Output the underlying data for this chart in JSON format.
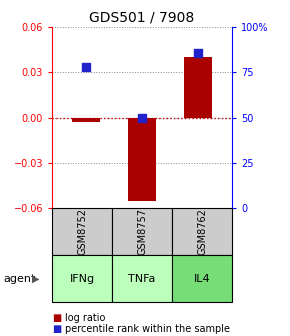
{
  "title": "GDS501 / 7908",
  "samples": [
    "GSM8752",
    "GSM8757",
    "GSM8762"
  ],
  "agents": [
    "IFNg",
    "TNFa",
    "IL4"
  ],
  "log_ratios": [
    -0.003,
    -0.055,
    0.04
  ],
  "percentile_ranks": [
    0.78,
    0.5,
    0.855
  ],
  "ylim_left": [
    -0.06,
    0.06
  ],
  "yticks_left": [
    -0.06,
    -0.03,
    0,
    0.03,
    0.06
  ],
  "ytick_labels_right": [
    "0",
    "25",
    "50",
    "75",
    "100%"
  ],
  "yticks_right": [
    0.0,
    0.25,
    0.5,
    0.75,
    1.0
  ],
  "bar_color": "#aa0000",
  "dot_color": "#2222cc",
  "grid_color": "#888888",
  "zero_line_color": "#cc0000",
  "sample_bg_color": "#cccccc",
  "agent_colors": [
    "#bbffbb",
    "#bbffbb",
    "#77dd77"
  ],
  "bar_width": 0.5,
  "dot_size": 40,
  "title_fontsize": 10,
  "tick_fontsize": 7,
  "legend_fontsize": 7,
  "table_label_fontsize": 7,
  "agent_fontsize": 8
}
